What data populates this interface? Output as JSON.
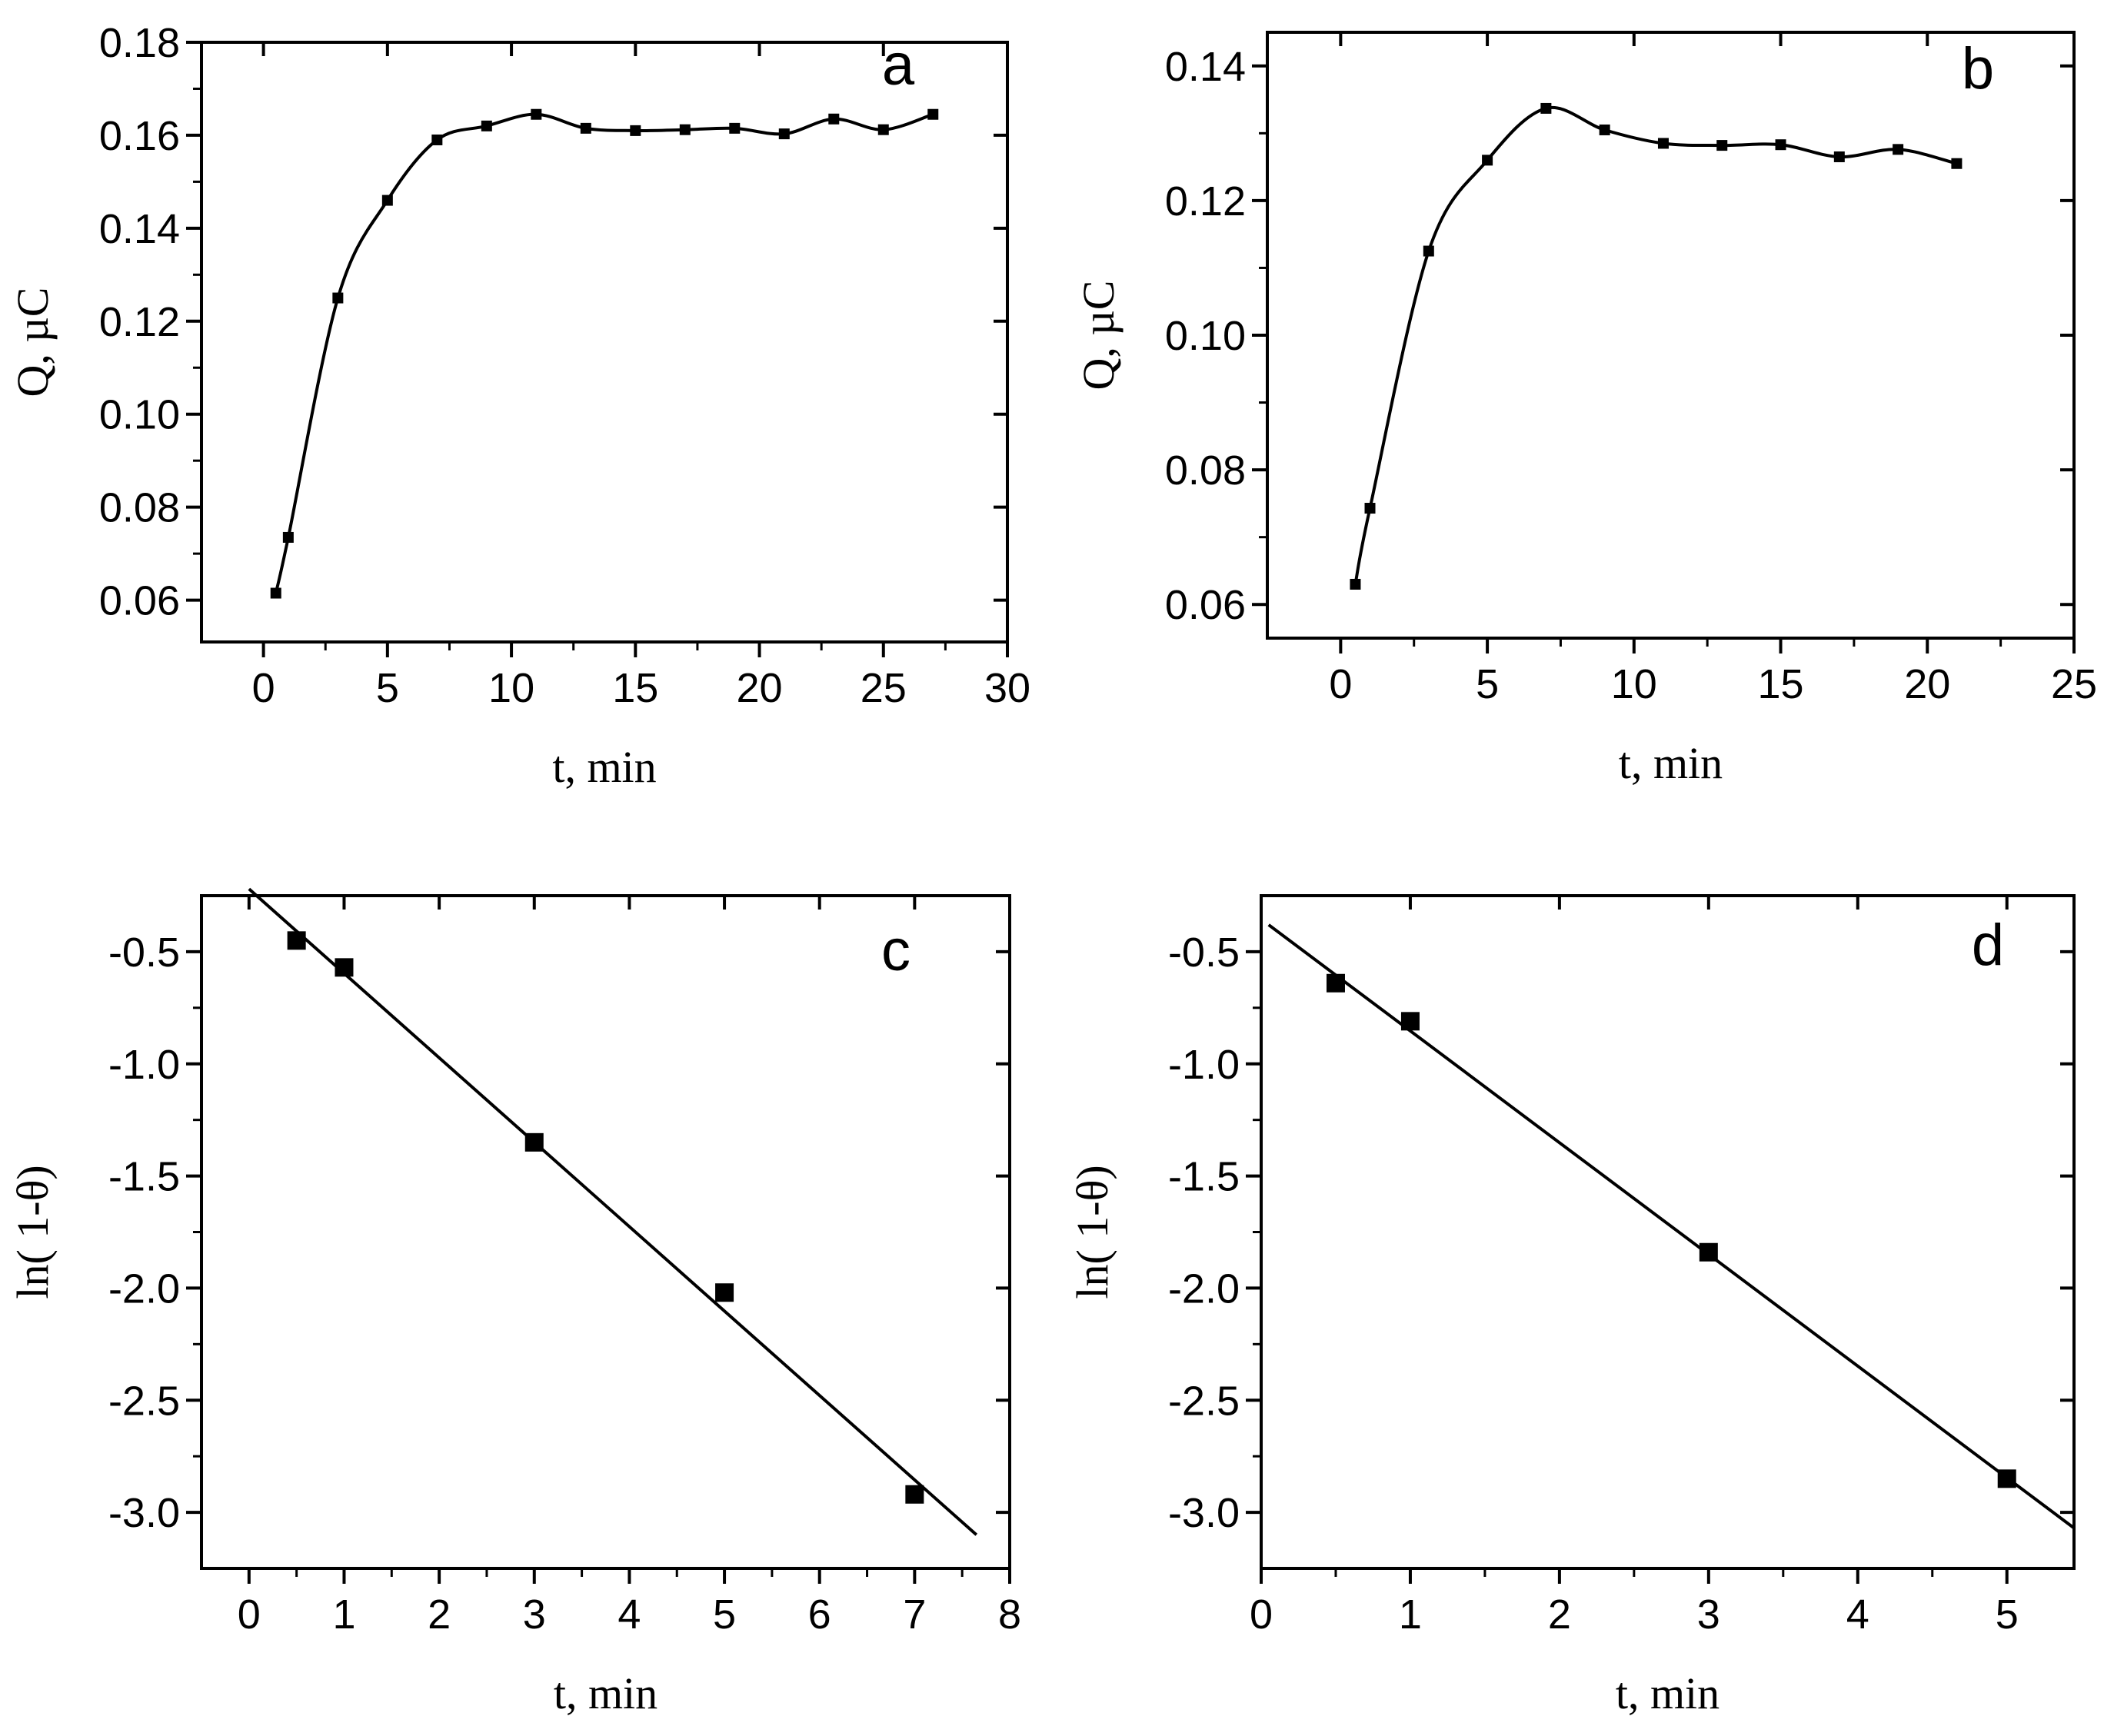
{
  "chart_data": [
    {
      "panel": "a",
      "type": "scatter",
      "xlabel": "t, min",
      "ylabel": "Q, µC",
      "xlim": [
        -2.5,
        30
      ],
      "ylim": [
        0.051,
        0.18
      ],
      "xticks": [
        0,
        5,
        10,
        15,
        20,
        25,
        30
      ],
      "yticks": [
        0.06,
        0.08,
        0.1,
        0.12,
        0.14,
        0.16,
        0.18
      ],
      "ytick_decimals": 2,
      "fit": "smooth curve",
      "series": [
        {
          "x": [
            0.5,
            1,
            3,
            5,
            7,
            9,
            11,
            13,
            15,
            17,
            19,
            21,
            23,
            25,
            27
          ],
          "y": [
            0.0615,
            0.0735,
            0.125,
            0.146,
            0.159,
            0.162,
            0.1645,
            0.1615,
            0.161,
            0.1612,
            0.1615,
            0.1603,
            0.1635,
            0.1612,
            0.1645
          ]
        }
      ],
      "grid": false
    },
    {
      "panel": "b",
      "type": "scatter",
      "xlabel": "t, min",
      "ylabel": "Q, µC",
      "xlim": [
        -2.5,
        25
      ],
      "ylim": [
        0.055,
        0.145
      ],
      "xticks": [
        0,
        5,
        10,
        15,
        20,
        25
      ],
      "yticks": [
        0.06,
        0.08,
        0.1,
        0.12,
        0.14
      ],
      "ytick_decimals": 2,
      "fit": "smooth curve",
      "series": [
        {
          "x": [
            0.5,
            1,
            3,
            5,
            7,
            9,
            11,
            13,
            15,
            17,
            19,
            21
          ],
          "y": [
            0.063,
            0.0743,
            0.1125,
            0.126,
            0.1337,
            0.1305,
            0.1285,
            0.1282,
            0.1283,
            0.1265,
            0.1276,
            0.1255
          ]
        }
      ],
      "grid": false
    },
    {
      "panel": "c",
      "type": "scatter",
      "xlabel": "t, min",
      "ylabel": "ln( 1-θ)",
      "xlim": [
        -0.5,
        8
      ],
      "ylim": [
        -3.25,
        -0.25
      ],
      "xticks": [
        0,
        1,
        2,
        3,
        4,
        5,
        6,
        7,
        8
      ],
      "yticks": [
        -3.0,
        -2.5,
        -2.0,
        -1.5,
        -1.0,
        -0.5
      ],
      "ytick_decimals": 1,
      "fit": "linear",
      "fit_line": {
        "x": [
          0,
          7.65
        ],
        "y": [
          -0.22,
          -3.1
        ]
      },
      "series": [
        {
          "x": [
            0.5,
            1,
            3,
            5,
            7
          ],
          "y": [
            -0.45,
            -0.57,
            -1.35,
            -2.02,
            -2.92
          ]
        }
      ],
      "grid": false
    },
    {
      "panel": "d",
      "type": "scatter",
      "xlabel": "t, min",
      "ylabel": "ln( 1-θ)",
      "xlim": [
        0,
        5.45
      ],
      "ylim": [
        -3.25,
        -0.25
      ],
      "xticks": [
        0,
        1,
        2,
        3,
        4,
        5
      ],
      "yticks": [
        -3.0,
        -2.5,
        -2.0,
        -1.5,
        -1.0,
        -0.5
      ],
      "ytick_decimals": 1,
      "fit": "linear",
      "fit_line": {
        "x": [
          0.05,
          5.45
        ],
        "y": [
          -0.38,
          -3.07
        ]
      },
      "series": [
        {
          "x": [
            0.5,
            1,
            3,
            5
          ],
          "y": [
            -0.64,
            -0.81,
            -1.84,
            -2.85
          ]
        }
      ],
      "grid": false
    }
  ]
}
